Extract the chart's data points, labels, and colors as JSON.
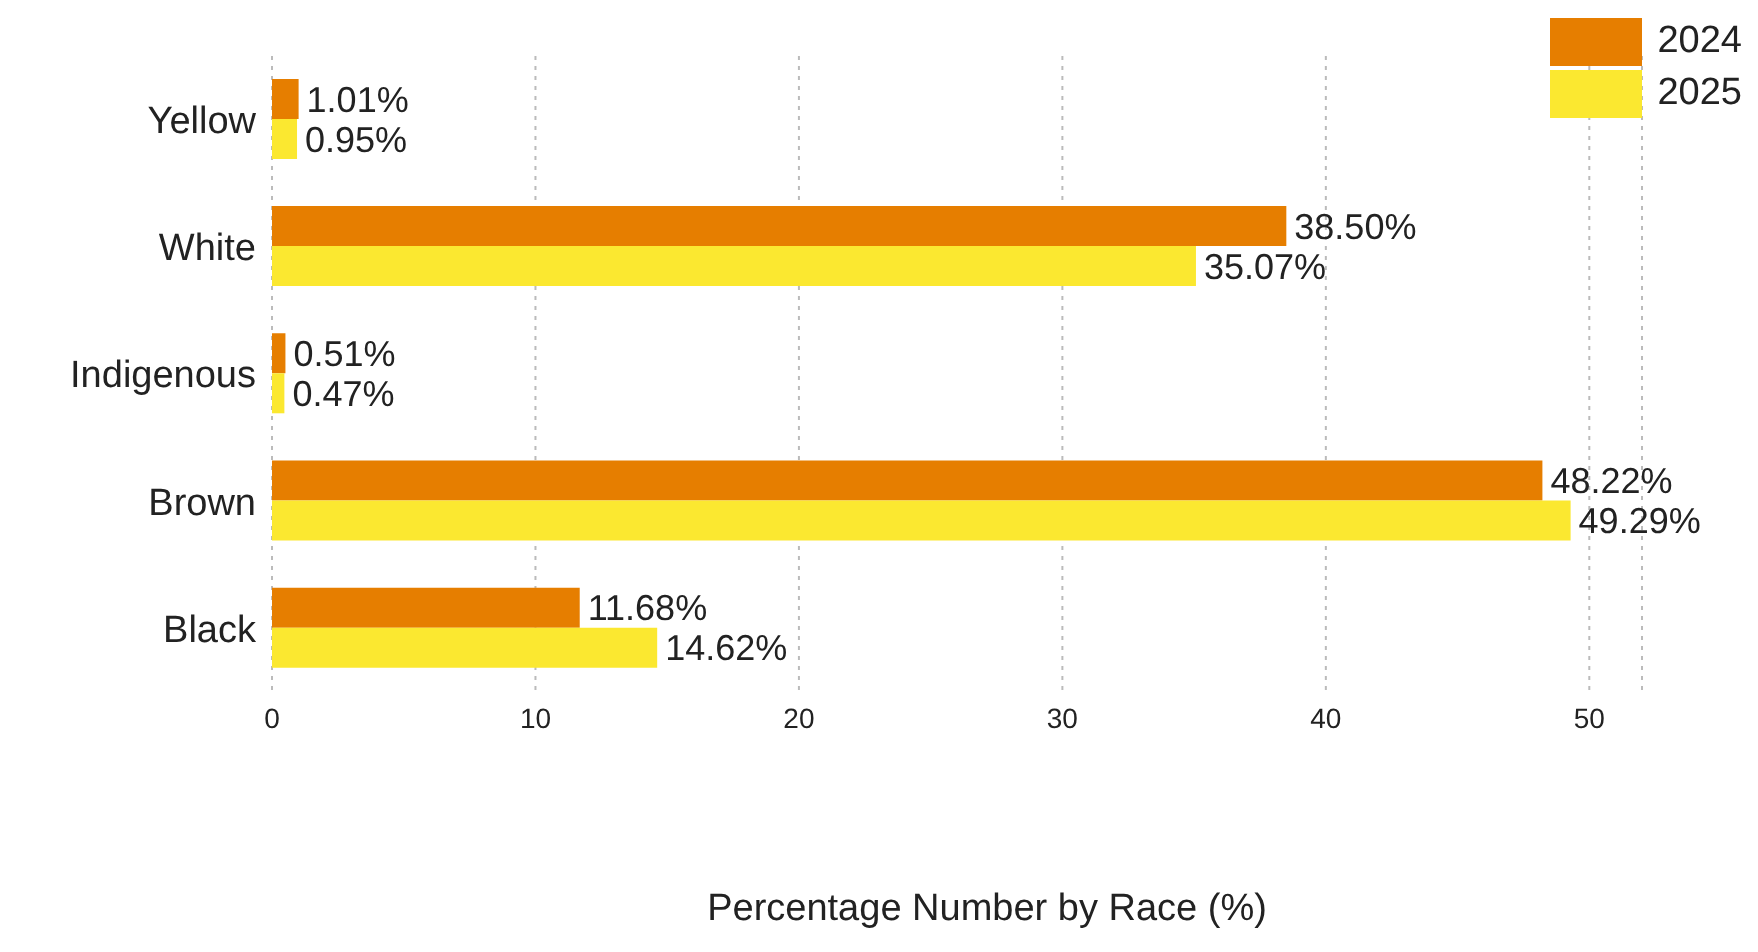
{
  "chart_data": {
    "type": "bar",
    "orientation": "horizontal",
    "xlabel": "Percentage Number by Race (%)",
    "categories": [
      "Yellow",
      "White",
      "Indigenous",
      "Brown",
      "Black"
    ],
    "series": [
      {
        "name": "2024",
        "color": "#e67e00",
        "values": [
          1.01,
          38.5,
          0.51,
          48.22,
          11.68
        ],
        "value_labels": [
          "1.01%",
          "38.50%",
          "0.51%",
          "48.22%",
          "11.68%"
        ]
      },
      {
        "name": "2025",
        "color": "#fbe830",
        "values": [
          0.95,
          35.07,
          0.47,
          49.29,
          14.62
        ],
        "value_labels": [
          "0.95%",
          "35.07%",
          "0.47%",
          "49.29%",
          "14.62%"
        ]
      }
    ],
    "xlim": [
      0,
      52
    ],
    "xticks": [
      0,
      10,
      20,
      30,
      40,
      50
    ],
    "grid": "x",
    "legend": "top right"
  }
}
